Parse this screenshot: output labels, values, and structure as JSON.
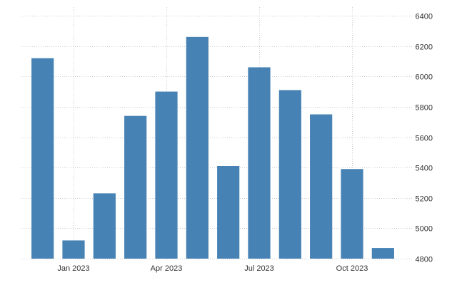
{
  "chart_data": {
    "type": "bar",
    "title": "",
    "xlabel": "",
    "ylabel": "",
    "x": [
      "2022-12",
      "2023-01",
      "2023-02",
      "2023-03",
      "2023-04",
      "2023-05",
      "2023-06",
      "2023-07",
      "2023-08",
      "2023-09",
      "2023-10",
      "2023-11"
    ],
    "values": [
      6120,
      4920,
      5230,
      5740,
      5900,
      6260,
      5410,
      6060,
      5910,
      5750,
      5390,
      4870
    ],
    "ylim": [
      4800,
      6400
    ],
    "y_ticks": [
      4800,
      5000,
      5200,
      5400,
      5600,
      5800,
      6000,
      6200,
      6400
    ],
    "y_tick_labels": [
      "4800",
      "5000",
      "5200",
      "5400",
      "5600",
      "5800",
      "6000",
      "6200",
      "6400"
    ],
    "x_ticks": [
      {
        "at": "2023-01",
        "label": "Jan 2023"
      },
      {
        "at": "2023-04",
        "label": "Apr 2023"
      },
      {
        "at": "2023-07",
        "label": "Jul 2023"
      },
      {
        "at": "2023-10",
        "label": "Oct 2023"
      }
    ],
    "y_axis_side": "right",
    "grid": true,
    "legend": "none",
    "bar_color": "#4682b4",
    "grid_color": "#cccccc"
  }
}
